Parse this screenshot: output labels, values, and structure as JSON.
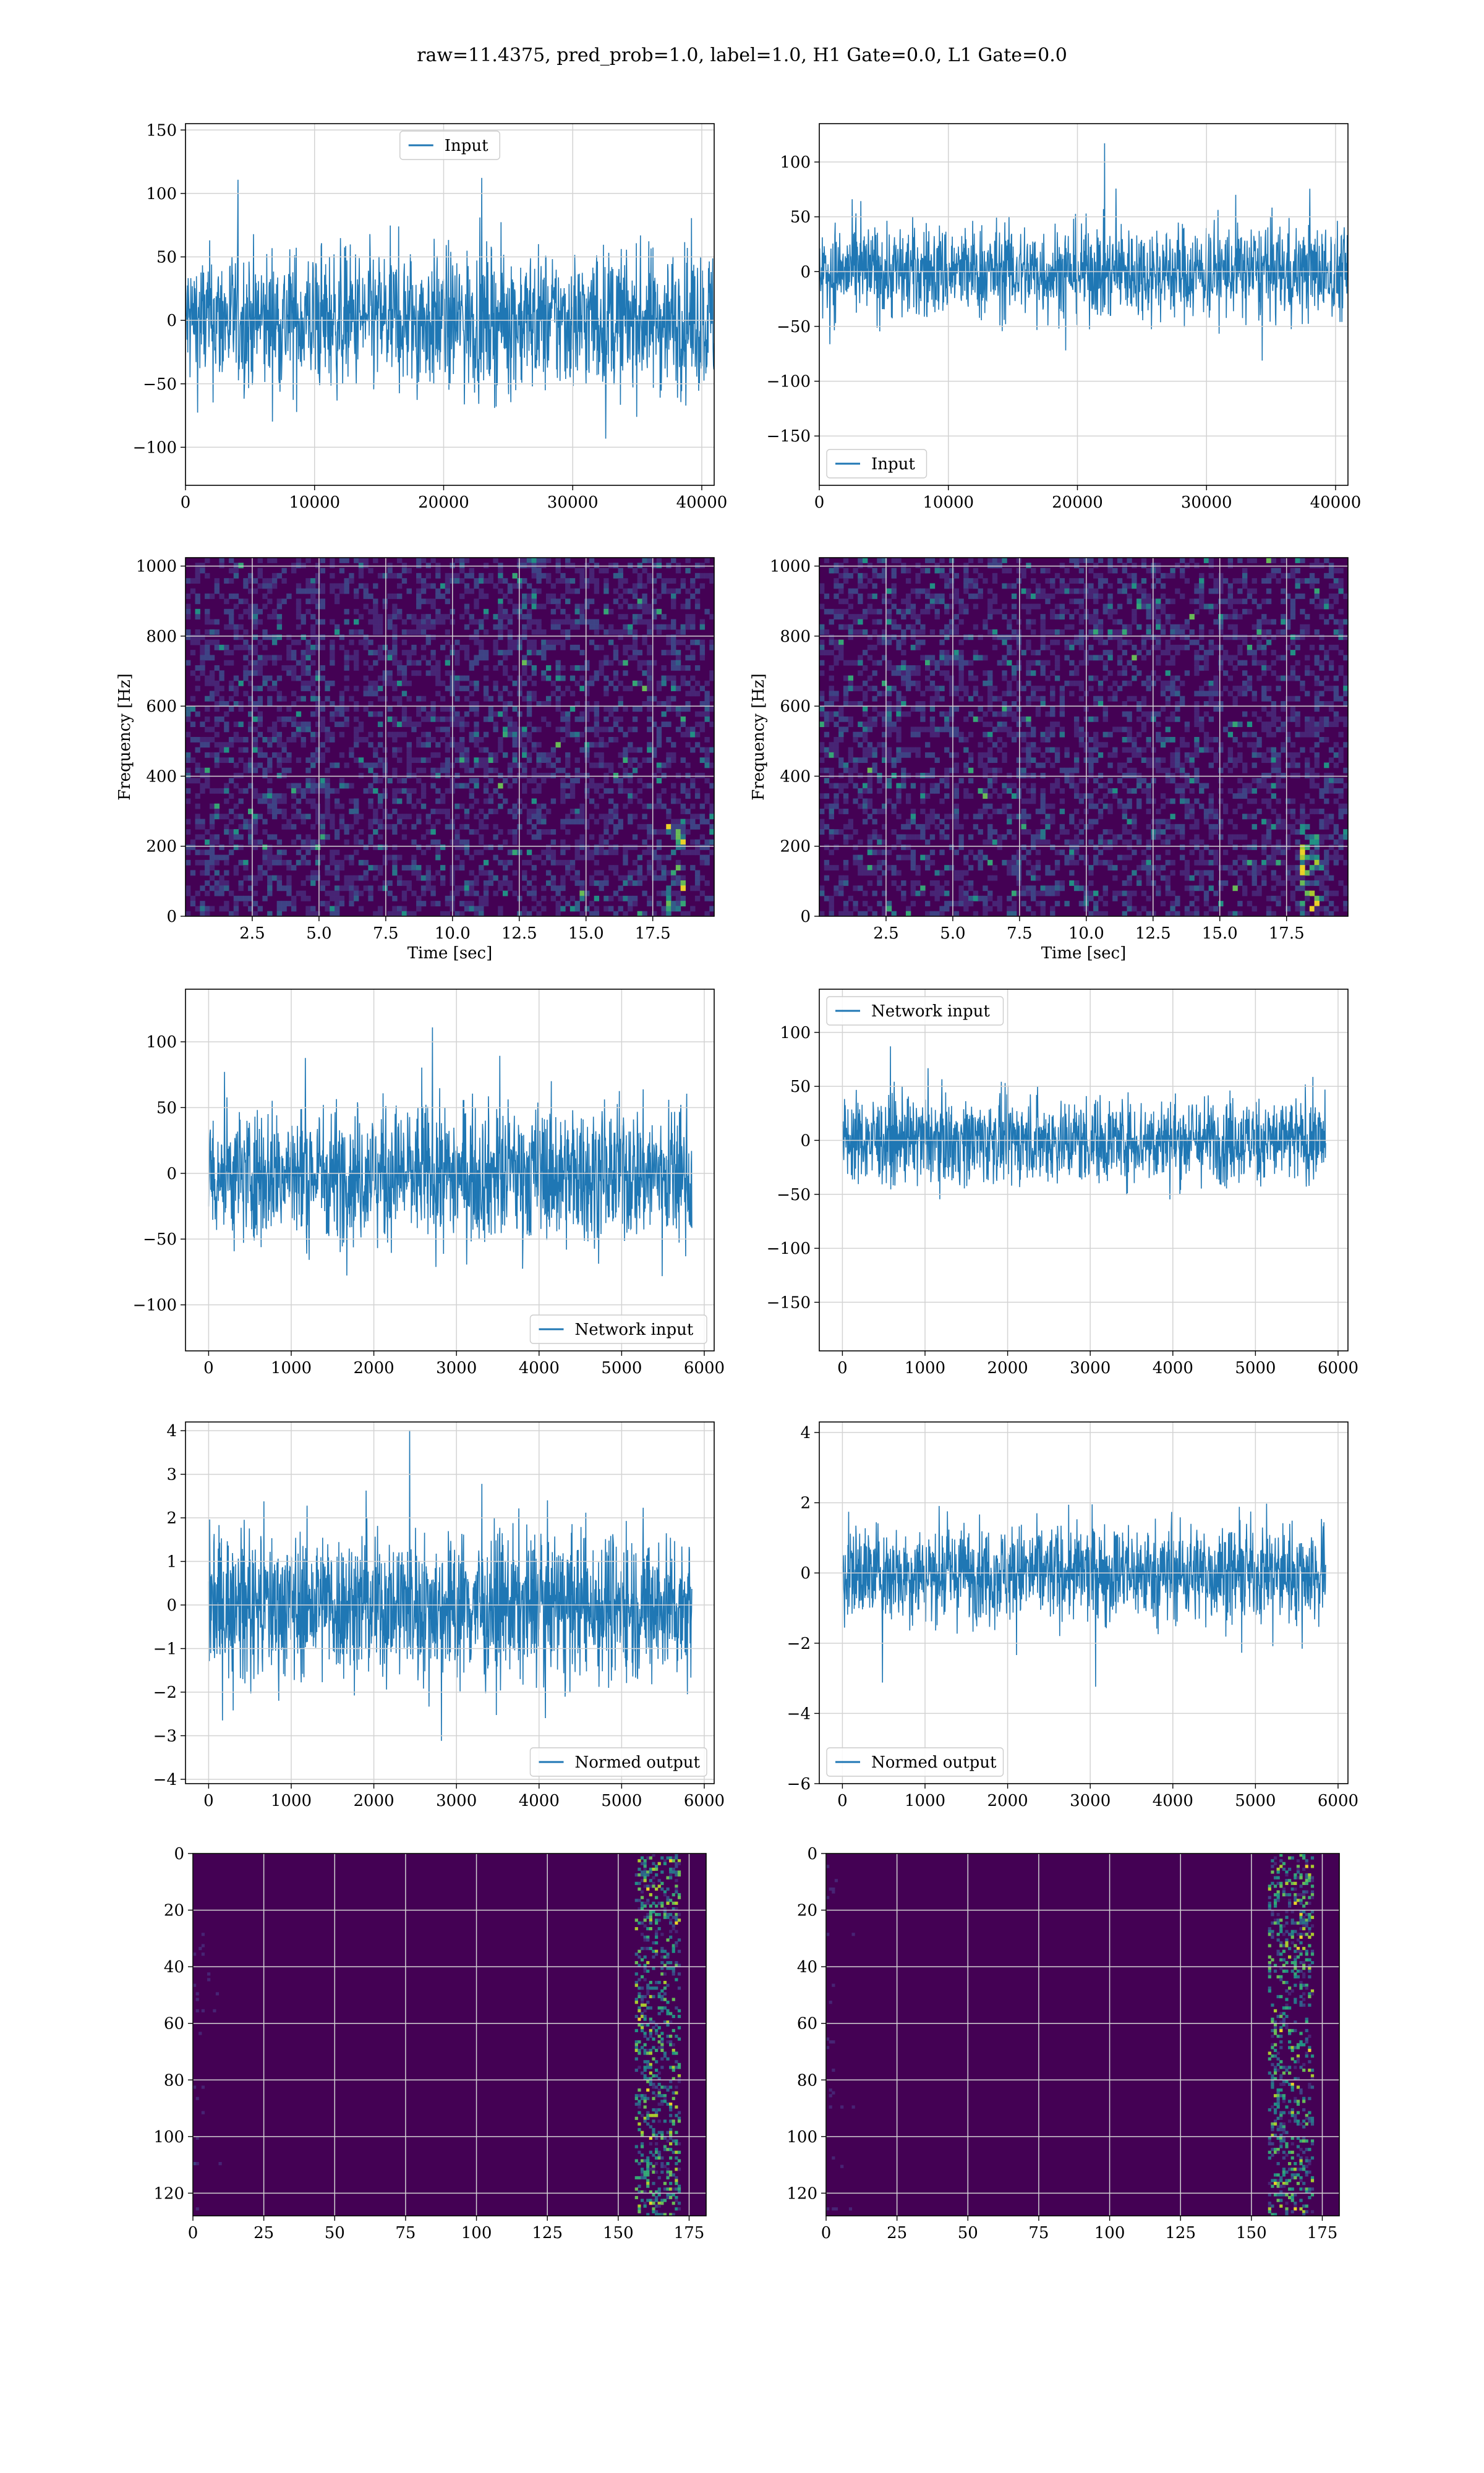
{
  "suptitle": "raw=11.4375, pred_prob=1.0, label=1.0, H1 Gate=0.0, L1 Gate=0.0",
  "colors": {
    "line": "#1f77b4",
    "grid": "#d3d3d3",
    "viridis_low": "#440154",
    "viridis_high": "#fde725"
  },
  "chart_data": [
    {
      "id": "r1c1",
      "type": "line",
      "series": [
        {
          "name": "Input"
        }
      ],
      "legend": "upper-center",
      "xlim": [
        0,
        40960
      ],
      "ylim": [
        -130,
        155
      ],
      "amp": 28,
      "xticks": [
        0,
        10000,
        20000,
        30000,
        40000
      ],
      "xticklabels": [
        "0",
        "10000",
        "20000",
        "30000",
        "40000"
      ],
      "yticks": [
        -100,
        -50,
        0,
        50,
        100,
        150
      ],
      "yticklabels": [
        "−100",
        "−50",
        "0",
        "50",
        "100",
        "150"
      ],
      "xlabel": "",
      "ylabel": ""
    },
    {
      "id": "r1c2",
      "type": "line",
      "series": [
        {
          "name": "Input"
        }
      ],
      "legend": "lower-left",
      "xlim": [
        0,
        40960
      ],
      "ylim": [
        -195,
        135
      ],
      "amp": 22,
      "xticks": [
        0,
        10000,
        20000,
        30000,
        40000
      ],
      "xticklabels": [
        "0",
        "10000",
        "20000",
        "30000",
        "40000"
      ],
      "yticks": [
        -150,
        -100,
        -50,
        0,
        50,
        100
      ],
      "yticklabels": [
        "−150",
        "−100",
        "−50",
        "0",
        "50",
        "100"
      ],
      "xlabel": "",
      "ylabel": ""
    },
    {
      "id": "r2c1",
      "type": "heatmap",
      "legend": "none",
      "xlim": [
        0,
        19.8
      ],
      "ylim": [
        0,
        1024
      ],
      "xticks": [
        2.5,
        5,
        7.5,
        10,
        12.5,
        15,
        17.5
      ],
      "xticklabels": [
        "2.5",
        "5.0",
        "7.5",
        "10.0",
        "12.5",
        "15.0",
        "17.5"
      ],
      "yticks": [
        0,
        200,
        400,
        600,
        800,
        1000
      ],
      "yticklabels": [
        "0",
        "200",
        "400",
        "600",
        "800",
        "1000"
      ],
      "xlabel": "Time [sec]",
      "ylabel": "Frequency [Hz]"
    },
    {
      "id": "r2c2",
      "type": "heatmap",
      "legend": "none",
      "xlim": [
        0,
        19.8
      ],
      "ylim": [
        0,
        1024
      ],
      "xticks": [
        2.5,
        5,
        7.5,
        10,
        12.5,
        15,
        17.5
      ],
      "xticklabels": [
        "2.5",
        "5.0",
        "7.5",
        "10.0",
        "12.5",
        "15.0",
        "17.5"
      ],
      "yticks": [
        0,
        200,
        400,
        600,
        800,
        1000
      ],
      "yticklabels": [
        "0",
        "200",
        "400",
        "600",
        "800",
        "1000"
      ],
      "xlabel": "Time [sec]",
      "ylabel": "Frequency [Hz]"
    },
    {
      "id": "r3c1",
      "type": "line",
      "series": [
        {
          "name": "Network input"
        }
      ],
      "legend": "lower-right",
      "xlim": [
        -280,
        6120
      ],
      "ylim": [
        -135,
        140
      ],
      "amp": 26,
      "xticks": [
        0,
        1000,
        2000,
        3000,
        4000,
        5000,
        6000
      ],
      "xticklabels": [
        "0",
        "1000",
        "2000",
        "3000",
        "4000",
        "5000",
        "6000"
      ],
      "yticks": [
        -100,
        -50,
        0,
        50,
        100
      ],
      "yticklabels": [
        "−100",
        "−50",
        "0",
        "50",
        "100"
      ],
      "xlabel": "",
      "ylabel": ""
    },
    {
      "id": "r3c2",
      "type": "line",
      "series": [
        {
          "name": "Network input"
        }
      ],
      "legend": "upper-left",
      "xlim": [
        -280,
        6120
      ],
      "ylim": [
        -195,
        140
      ],
      "amp": 20,
      "xticks": [
        0,
        1000,
        2000,
        3000,
        4000,
        5000,
        6000
      ],
      "xticklabels": [
        "0",
        "1000",
        "2000",
        "3000",
        "4000",
        "5000",
        "6000"
      ],
      "yticks": [
        -150,
        -100,
        -50,
        0,
        50,
        100
      ],
      "yticklabels": [
        "−150",
        "−100",
        "−50",
        "0",
        "50",
        "100"
      ],
      "xlabel": "",
      "ylabel": ""
    },
    {
      "id": "r4c1",
      "type": "line",
      "series": [
        {
          "name": "Normed output"
        }
      ],
      "legend": "lower-right",
      "xlim": [
        -280,
        6120
      ],
      "ylim": [
        -4.1,
        4.2
      ],
      "amp": 0.85,
      "xticks": [
        0,
        1000,
        2000,
        3000,
        4000,
        5000,
        6000
      ],
      "xticklabels": [
        "0",
        "1000",
        "2000",
        "3000",
        "4000",
        "5000",
        "6000"
      ],
      "yticks": [
        -4,
        -3,
        -2,
        -1,
        0,
        1,
        2,
        3,
        4
      ],
      "yticklabels": [
        "−4",
        "−3",
        "−2",
        "−1",
        "0",
        "1",
        "2",
        "3",
        "4"
      ],
      "xlabel": "",
      "ylabel": ""
    },
    {
      "id": "r4c2",
      "type": "line",
      "series": [
        {
          "name": "Normed output"
        }
      ],
      "legend": "lower-left",
      "xlim": [
        -280,
        6120
      ],
      "ylim": [
        -6.0,
        4.3
      ],
      "amp": 0.7,
      "xticks": [
        0,
        1000,
        2000,
        3000,
        4000,
        5000,
        6000
      ],
      "xticklabels": [
        "0",
        "1000",
        "2000",
        "3000",
        "4000",
        "5000",
        "6000"
      ],
      "yticks": [
        -6,
        -4,
        -2,
        0,
        2,
        4
      ],
      "yticklabels": [
        "−6",
        "−4",
        "−2",
        "0",
        "2",
        "4"
      ],
      "xlabel": "",
      "ylabel": ""
    },
    {
      "id": "r5c1",
      "type": "heatmap",
      "legend": "none",
      "xlim": [
        0,
        181
      ],
      "ylim": [
        0,
        128
      ],
      "yinverted": true,
      "xticks": [
        0,
        25,
        50,
        75,
        100,
        125,
        150,
        175
      ],
      "xticklabels": [
        "0",
        "25",
        "50",
        "75",
        "100",
        "125",
        "150",
        "175"
      ],
      "yticks": [
        0,
        20,
        40,
        60,
        80,
        100,
        120
      ],
      "yticklabels": [
        "0",
        "20",
        "40",
        "60",
        "80",
        "100",
        "120"
      ],
      "xlabel": "",
      "ylabel": ""
    },
    {
      "id": "r5c2",
      "type": "heatmap",
      "legend": "none",
      "xlim": [
        0,
        181
      ],
      "ylim": [
        0,
        128
      ],
      "yinverted": true,
      "xticks": [
        0,
        25,
        50,
        75,
        100,
        125,
        150,
        175
      ],
      "xticklabels": [
        "0",
        "25",
        "50",
        "75",
        "100",
        "125",
        "150",
        "175"
      ],
      "yticks": [
        0,
        20,
        40,
        60,
        80,
        100,
        120
      ],
      "yticklabels": [
        "0",
        "20",
        "40",
        "60",
        "80",
        "100",
        "120"
      ],
      "xlabel": "",
      "ylabel": ""
    }
  ]
}
